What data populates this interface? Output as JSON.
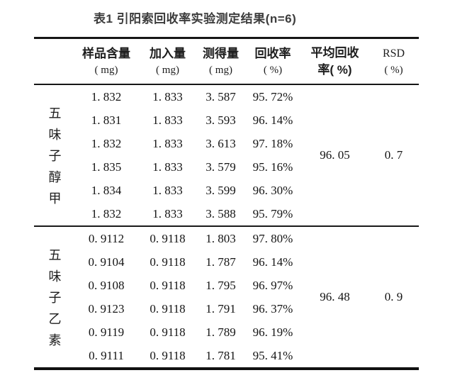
{
  "page": {
    "background": "#ffffff",
    "text_color": "#141414",
    "title_color": "#3c3c3c",
    "rule_color": "#161616"
  },
  "title": "表1 引阳索回收率实验测定结果(n=6)",
  "table": {
    "headers": [
      {
        "line1": "样品含量",
        "line2": "( mg)"
      },
      {
        "line1": "加入量",
        "line2": "( mg)"
      },
      {
        "line1": "测得量",
        "line2": "( mg)"
      },
      {
        "line1": "回收率",
        "line2": "( %)"
      },
      {
        "line1": "平均回收",
        "line2": "率( %)"
      },
      {
        "line1": "RSD",
        "line2": "( %)"
      }
    ],
    "groups": [
      {
        "label": "五味子醇甲",
        "rows": [
          [
            "1. 832",
            "1. 833",
            "3. 587",
            "95. 72%"
          ],
          [
            "1. 831",
            "1. 833",
            "3. 593",
            "96. 14%"
          ],
          [
            "1. 832",
            "1. 833",
            "3. 613",
            "97. 18%"
          ],
          [
            "1. 835",
            "1. 833",
            "3. 579",
            "95. 16%"
          ],
          [
            "1. 834",
            "1. 833",
            "3. 599",
            "96. 30%"
          ],
          [
            "1. 832",
            "1. 833",
            "3. 588",
            "95. 79%"
          ]
        ],
        "avg_recovery": "96. 05",
        "rsd": "0. 7"
      },
      {
        "label": "五味子乙素",
        "rows": [
          [
            "0. 9112",
            "0. 9118",
            "1. 803",
            "97. 80%"
          ],
          [
            "0. 9104",
            "0. 9118",
            "1. 787",
            "96. 14%"
          ],
          [
            "0. 9108",
            "0. 9118",
            "1. 795",
            "96. 97%"
          ],
          [
            "0. 9123",
            "0. 9118",
            "1. 791",
            "96. 37%"
          ],
          [
            "0. 9119",
            "0. 9118",
            "1. 789",
            "96. 19%"
          ],
          [
            "0. 9111",
            "0. 9118",
            "1. 781",
            "95. 41%"
          ]
        ],
        "avg_recovery": "96. 48",
        "rsd": "0. 9"
      }
    ]
  }
}
